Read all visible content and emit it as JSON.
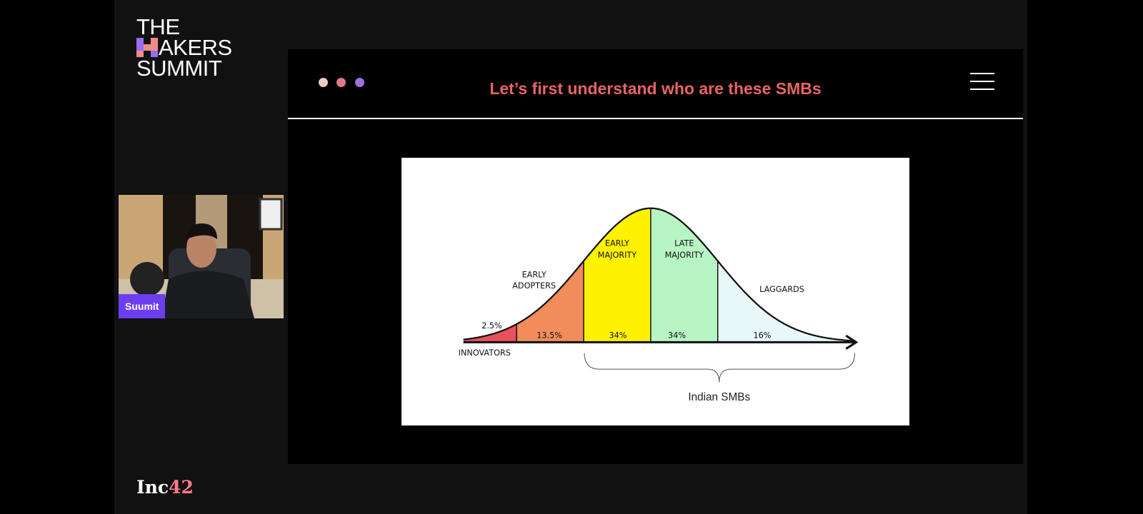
{
  "event_logo": {
    "line1": "THE",
    "line2": "AKERS",
    "line3": "SUMMIT",
    "mark_colors": [
      "#9b6cf0",
      "#ef8a8a",
      "#ef8a8a",
      "#9b6cf0"
    ]
  },
  "speaker": {
    "name": "Suumit",
    "badge_color": "#6b3ff0"
  },
  "footer_logo": {
    "text1": "Inc",
    "text2": "42"
  },
  "slide": {
    "title": "Let’s first understand who are these SMBs",
    "title_color": "#e86464",
    "dot_colors": [
      "#f2c9c9",
      "#e07a8a",
      "#a070e0"
    ],
    "menu_icon": "hamburger-icon"
  },
  "chart_data": {
    "type": "area",
    "subtype": "bell-curve",
    "segments": [
      {
        "name": "INNOVATORS",
        "value": 2.5,
        "label": "2.5%",
        "color": "#e8505b"
      },
      {
        "name": "EARLY ADOPTERS",
        "value": 13.5,
        "label": "13.5%",
        "color": "#f28c5a"
      },
      {
        "name": "EARLY MAJORITY",
        "value": 34,
        "label": "34%",
        "color": "#fff200"
      },
      {
        "name": "LATE MAJORITY",
        "value": 34,
        "label": "34%",
        "color": "#b8f5c4"
      },
      {
        "name": "LAGGARDS",
        "value": 16,
        "label": "16%",
        "color": "#e8f8f8"
      }
    ],
    "bracket_label": "Indian SMBs",
    "bracket_covers": [
      "EARLY MAJORITY",
      "LATE MAJORITY",
      "LAGGARDS"
    ]
  }
}
